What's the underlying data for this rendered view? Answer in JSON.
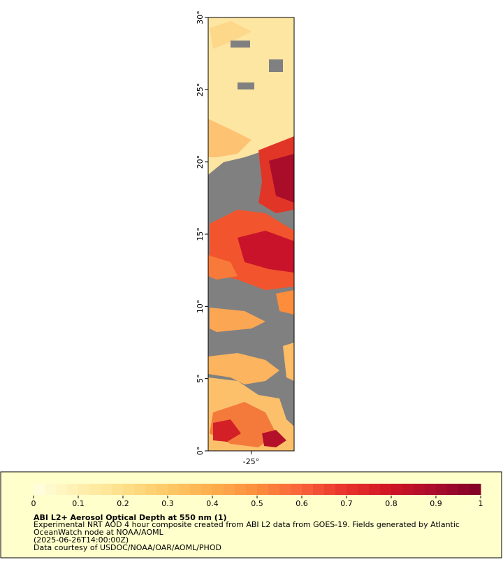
{
  "map": {
    "xlim": [
      -26.5,
      -23.5
    ],
    "xticks": [
      {
        "value": -25,
        "label": "-25°"
      }
    ],
    "ylim": [
      0,
      30
    ],
    "yticks": [
      {
        "value": 0,
        "label": "0°"
      },
      {
        "value": 5,
        "label": "5°"
      },
      {
        "value": 10,
        "label": "10°"
      },
      {
        "value": 15,
        "label": "15°"
      },
      {
        "value": 20,
        "label": "20°"
      },
      {
        "value": 25,
        "label": "25°"
      },
      {
        "value": 30,
        "label": "30°"
      }
    ],
    "missing_color": "#808080"
  },
  "legend": {
    "title": "ABI L2+ Aerosol Optical Depth at 550 nm (1)",
    "lines": [
      "Experimental NRT AOD 4 hour composite created from ABI L2 data from GOES-19. Fields generated by Atlantic",
      "OceanWatch node at NOAA/AOML",
      "(2025-06-26T14:00:00Z)",
      "Data courtesy of USDOC/NOAA/OAR/AOML/PHOD"
    ],
    "colorbar": {
      "lim": [
        0,
        1
      ],
      "ticks": [
        0,
        0.1,
        0.2,
        0.3,
        0.4,
        0.5,
        0.6,
        0.7,
        0.8,
        0.9,
        1
      ],
      "colors": [
        "#ffffe0",
        "#fff0b0",
        "#ffe08a",
        "#fec965",
        "#fdae4c",
        "#fc8d3c",
        "#f8623a",
        "#e8302a",
        "#cf1424",
        "#a80b2c",
        "#800026"
      ]
    }
  }
}
